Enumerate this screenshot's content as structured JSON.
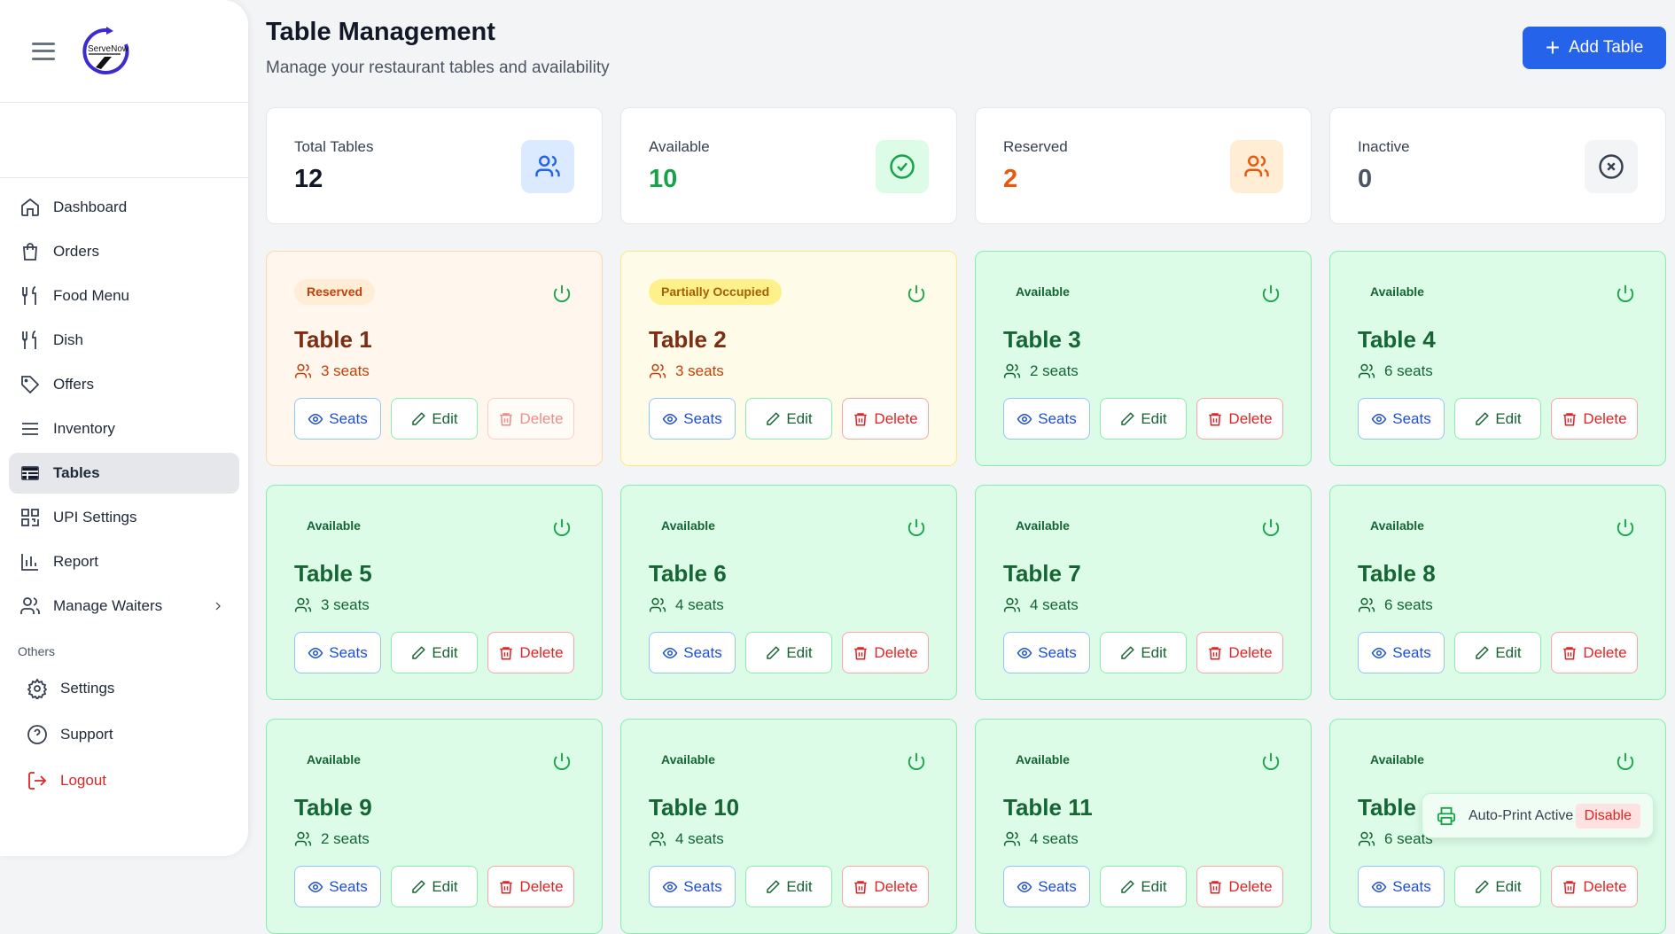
{
  "sidebar": {
    "logo_text": "ServeNow",
    "items": [
      {
        "label": "Dashboard",
        "icon": "home-icon"
      },
      {
        "label": "Orders",
        "icon": "shopping-bag-icon"
      },
      {
        "label": "Food Menu",
        "icon": "utensils-icon"
      },
      {
        "label": "Dish",
        "icon": "utensils-icon"
      },
      {
        "label": "Offers",
        "icon": "tag-icon"
      },
      {
        "label": "Inventory",
        "icon": "list-icon"
      },
      {
        "label": "Tables",
        "icon": "table-icon",
        "active": true
      },
      {
        "label": "UPI Settings",
        "icon": "qr-code-icon"
      },
      {
        "label": "Report",
        "icon": "bar-chart-icon"
      },
      {
        "label": "Manage Waiters",
        "icon": "users-icon"
      }
    ],
    "others_label": "Others",
    "others": [
      {
        "label": "Settings"
      },
      {
        "label": "Support"
      },
      {
        "label": "Logout"
      }
    ]
  },
  "header": {
    "title": "Table Management",
    "subtitle": "Manage your restaurant tables and availability",
    "add_label": "Add Table"
  },
  "stats": [
    {
      "label": "Total Tables",
      "value": "12",
      "color": "#111827"
    },
    {
      "label": "Available",
      "value": "10",
      "color": "#16a34a"
    },
    {
      "label": "Reserved",
      "value": "2",
      "color": "#ea580c"
    },
    {
      "label": "Inactive",
      "value": "0",
      "color": "#4b5563"
    }
  ],
  "buttons": {
    "seats": "Seats",
    "edit": "Edit",
    "delete": "Delete"
  },
  "tables": [
    {
      "name": "Table 1",
      "seats": "3 seats",
      "status": "Reserved"
    },
    {
      "name": "Table 2",
      "seats": "3 seats",
      "status": "Partially Occupied"
    },
    {
      "name": "Table 3",
      "seats": "2 seats",
      "status": "Available"
    },
    {
      "name": "Table 4",
      "seats": "6 seats",
      "status": "Available"
    },
    {
      "name": "Table 5",
      "seats": "3 seats",
      "status": "Available"
    },
    {
      "name": "Table 6",
      "seats": "4 seats",
      "status": "Available"
    },
    {
      "name": "Table 7",
      "seats": "4 seats",
      "status": "Available"
    },
    {
      "name": "Table 8",
      "seats": "6 seats",
      "status": "Available"
    },
    {
      "name": "Table 9",
      "seats": "2 seats",
      "status": "Available"
    },
    {
      "name": "Table 10",
      "seats": "4 seats",
      "status": "Available"
    },
    {
      "name": "Table 11",
      "seats": "4 seats",
      "status": "Available"
    },
    {
      "name": "Table 12",
      "seats": "6 seats",
      "status": "Available"
    }
  ],
  "toast": {
    "text": "Auto-Print Active",
    "action": "Disable"
  }
}
